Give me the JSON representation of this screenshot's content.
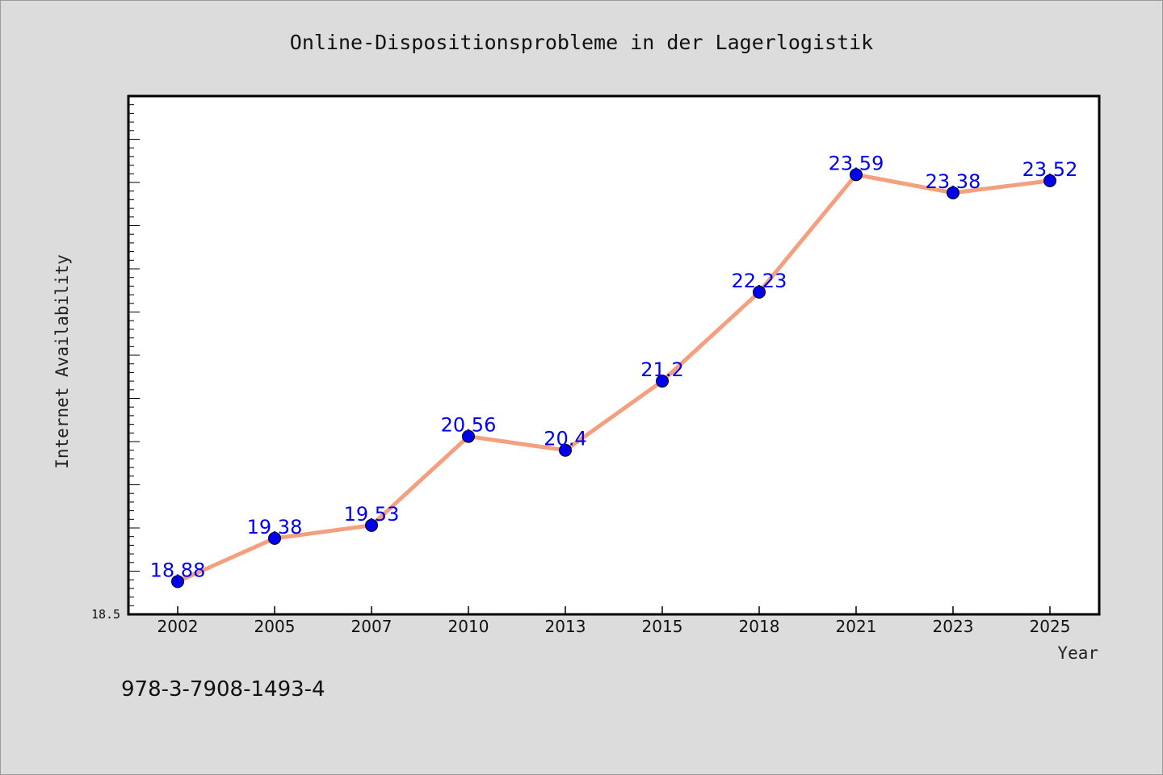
{
  "chart_data": {
    "type": "line",
    "title": "Online-Dispositionsprobleme in der Lagerlogistik",
    "xlabel": "Year",
    "ylabel": "Internet Availability",
    "categories": [
      "2002",
      "2005",
      "2007",
      "2010",
      "2013",
      "2015",
      "2018",
      "2021",
      "2023",
      "2025"
    ],
    "series": [
      {
        "values": [
          18.88,
          19.38,
          19.53,
          20.56,
          20.4,
          21.2,
          22.23,
          23.59,
          23.38,
          23.52
        ],
        "labels": [
          "18.88",
          "19.38",
          "19.53",
          "20.56",
          "20.4",
          "21.2",
          "22.23",
          "23.59",
          "23.38",
          "23.52"
        ]
      }
    ],
    "ylim": [
      18.5,
      24.5
    ],
    "y_min_label": "18.5",
    "grid": false,
    "colors": {
      "line": "#f4a07e",
      "marker": "#0000ee",
      "marker_edge": "#000000",
      "label": "#0000ee"
    }
  },
  "footer": {
    "isbn": "978-3-7908-1493-4"
  }
}
